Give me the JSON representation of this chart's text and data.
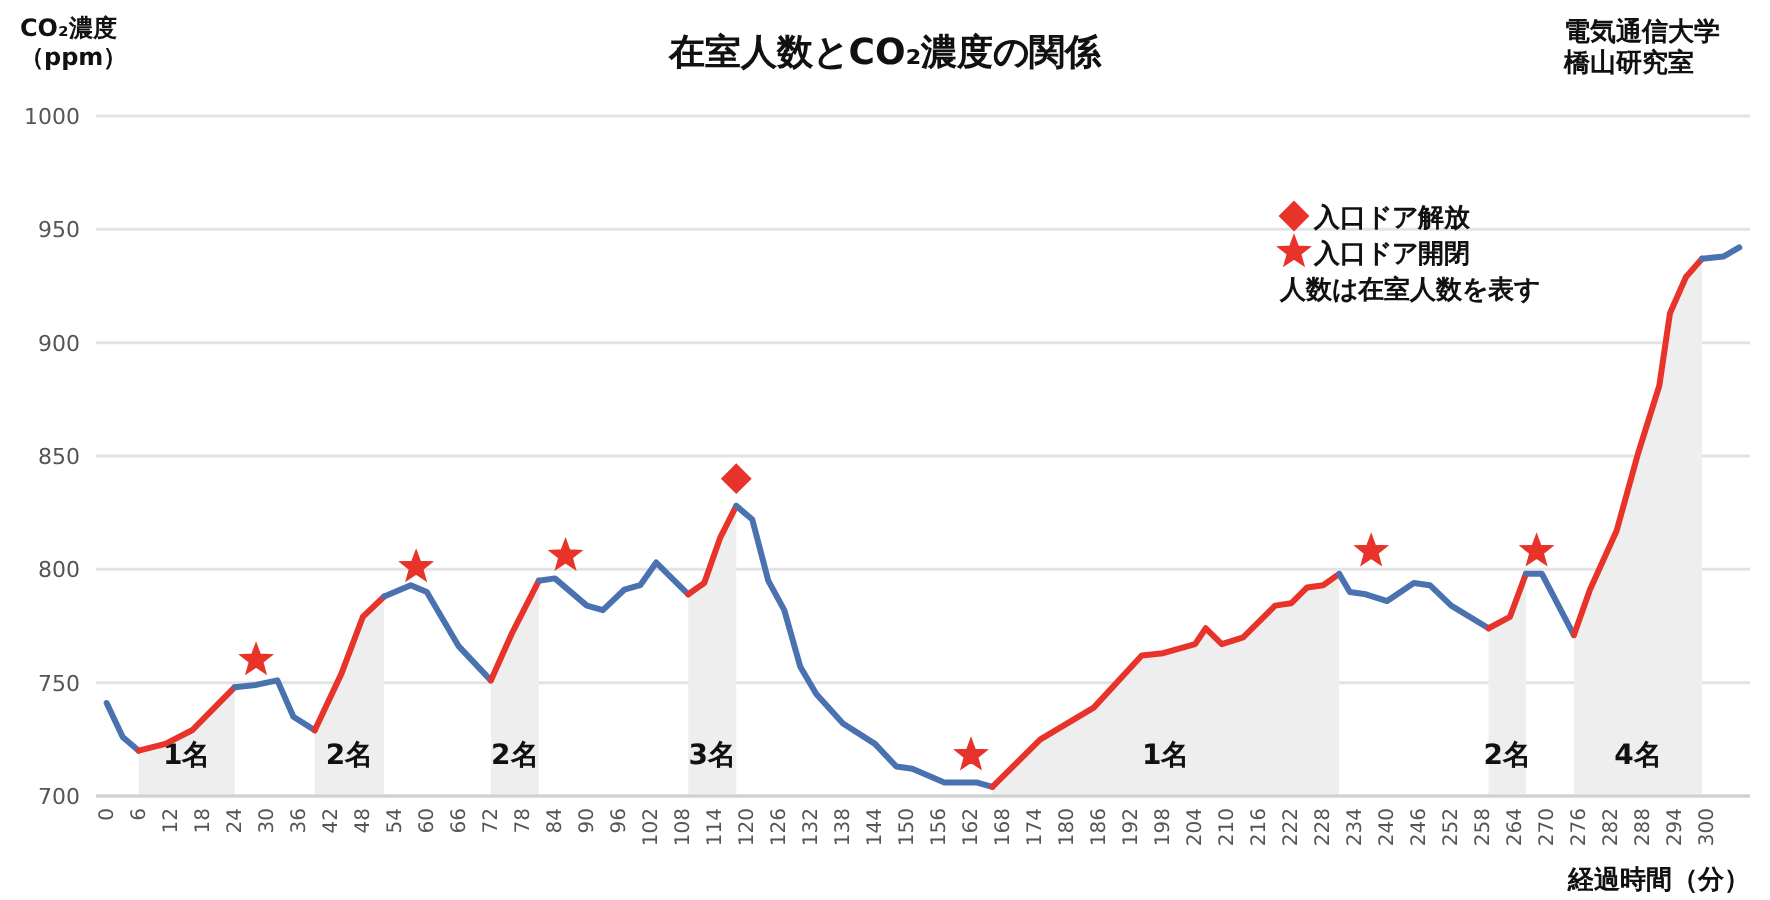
{
  "chart_data": {
    "type": "line",
    "title": "在室人数とCO₂濃度の関係",
    "ylabel": "CO₂濃度（ppm）",
    "xlabel": "経過時間（分）",
    "annotations": [
      "電気通信大学橋山研究室",
      "人数は在室人数を表す"
    ],
    "xlim": [
      -2,
      308
    ],
    "xticks": [
      0,
      6,
      12,
      18,
      24,
      30,
      36,
      42,
      48,
      54,
      60,
      66,
      72,
      78,
      84,
      90,
      96,
      102,
      108,
      114,
      120,
      126,
      132,
      138,
      144,
      150,
      156,
      162,
      168,
      174,
      180,
      186,
      192,
      198,
      204,
      210,
      216,
      222,
      228,
      234,
      240,
      246,
      252,
      258,
      264,
      270,
      276,
      282,
      288,
      294,
      300
    ],
    "ylim": [
      700,
      1000
    ],
    "yticks": [
      700,
      750,
      800,
      850,
      900,
      950,
      1000
    ],
    "grid": "y",
    "legend": "top right",
    "marker": "none",
    "line_style": "solid",
    "series": [
      {
        "color": "#4a72b0",
        "x": [
          0,
          3,
          6
        ],
        "values": [
          741,
          726,
          720
        ]
      },
      {
        "color": "#e8332a",
        "x": [
          6,
          11,
          16,
          24
        ],
        "values": [
          720,
          723,
          729,
          748
        ]
      },
      {
        "color": "#4a72b0",
        "x": [
          24,
          28,
          32,
          35,
          39
        ],
        "values": [
          748,
          749,
          751,
          735,
          729
        ]
      },
      {
        "color": "#e8332a",
        "x": [
          39,
          44,
          48,
          52
        ],
        "values": [
          729,
          754,
          779,
          788
        ]
      },
      {
        "color": "#4a72b0",
        "x": [
          52,
          57,
          60,
          66,
          72
        ],
        "values": [
          788,
          793,
          790,
          766,
          751
        ]
      },
      {
        "color": "#e8332a",
        "x": [
          72,
          76,
          81
        ],
        "values": [
          751,
          772,
          795
        ]
      },
      {
        "color": "#4a72b0",
        "x": [
          81,
          84,
          90,
          93,
          97,
          100,
          103,
          109
        ],
        "values": [
          795,
          796,
          784,
          782,
          791,
          793,
          803,
          789
        ]
      },
      {
        "color": "#e8332a",
        "x": [
          109,
          112,
          115,
          118
        ],
        "values": [
          789,
          794,
          814,
          828
        ]
      },
      {
        "color": "#4a72b0",
        "x": [
          118,
          121,
          124,
          127,
          130,
          133,
          138,
          144,
          148,
          151,
          157,
          163,
          166
        ],
        "values": [
          828,
          822,
          795,
          782,
          757,
          745,
          732,
          723,
          713,
          712,
          706,
          706,
          704
        ]
      },
      {
        "color": "#e8332a",
        "x": [
          166,
          175,
          185,
          194,
          198,
          204,
          206,
          209,
          213,
          219,
          222,
          225,
          228,
          231
        ],
        "values": [
          704,
          725,
          739,
          762,
          763,
          767,
          774,
          767,
          770,
          784,
          785,
          792,
          793,
          798
        ]
      },
      {
        "color": "#4a72b0",
        "x": [
          231,
          233,
          236,
          240,
          245,
          248,
          252,
          259
        ],
        "values": [
          798,
          790,
          789,
          786,
          794,
          793,
          784,
          774
        ]
      },
      {
        "color": "#e8332a",
        "x": [
          259,
          263,
          266
        ],
        "values": [
          774,
          779,
          798
        ]
      },
      {
        "color": "#4a72b0",
        "x": [
          266,
          269,
          275
        ],
        "values": [
          798,
          798,
          771
        ]
      },
      {
        "color": "#e8332a",
        "x": [
          275,
          278,
          283,
          287,
          291,
          293,
          296,
          299
        ],
        "values": [
          771,
          791,
          817,
          851,
          881,
          913,
          929,
          937
        ]
      },
      {
        "color": "#4a72b0",
        "x": [
          299,
          303,
          306
        ],
        "values": [
          937,
          938,
          942
        ]
      },
      {
        "type": "scatter",
        "name": "入口ドア解放",
        "color": "#e8332a",
        "marker": "diamond",
        "x": [
          118
        ],
        "values": [
          840
        ]
      },
      {
        "type": "scatter",
        "name": "入口ドア開閉",
        "color": "#e8332a",
        "marker": "star",
        "x": [
          28,
          58,
          86,
          162,
          237,
          268
        ],
        "values": [
          760,
          801,
          806,
          718,
          808,
          808
        ]
      }
    ],
    "bands": [
      {
        "axis": "x",
        "from": 6,
        "to": 24,
        "label": "1名",
        "color": "#eeeeee"
      },
      {
        "axis": "x",
        "from": 39,
        "to": 52,
        "label": "2名",
        "color": "#eeeeee"
      },
      {
        "axis": "x",
        "from": 72,
        "to": 81,
        "label": "2名",
        "color": "#eeeeee"
      },
      {
        "axis": "x",
        "from": 109,
        "to": 118,
        "label": "3名",
        "color": "#eeeeee"
      },
      {
        "axis": "x",
        "from": 166,
        "to": 231,
        "label": "1名",
        "color": "#eeeeee"
      },
      {
        "axis": "x",
        "from": 259,
        "to": 266,
        "label": "2名",
        "color": "#eeeeee"
      },
      {
        "axis": "x",
        "from": 275,
        "to": 299,
        "label": "4名",
        "color": "#eeeeee"
      }
    ]
  }
}
